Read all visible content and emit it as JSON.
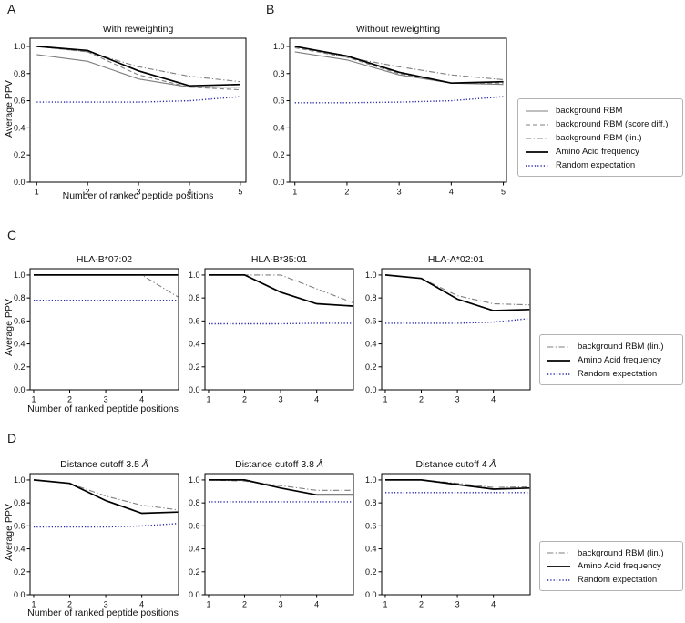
{
  "figure": {
    "panel_labels": {
      "a": "A",
      "b": "B",
      "c": "C",
      "d": "D"
    },
    "ylabel": "Average PPV",
    "xlabel": "Number of ranked peptide positions"
  },
  "line_styles": {
    "gray_solid": {
      "color": "#7f7f7f",
      "dash": "solid",
      "width": 1.1
    },
    "gray_dashed": {
      "color": "#7f7f7f",
      "dash": "dashed",
      "width": 1.1
    },
    "gray_dashdot": {
      "color": "#7f7f7f",
      "dash": "dashdot",
      "width": 1.1
    },
    "black_solid": {
      "color": "#000000",
      "dash": "solid",
      "width": 1.7
    },
    "blue_dotted": {
      "color": "#2222aa",
      "dash": "dotted",
      "width": 1.4
    }
  },
  "legends": {
    "ab": {
      "entries": [
        {
          "label": "background RBM",
          "style": "gray_solid"
        },
        {
          "label": "background RBM (score diff.)",
          "style": "gray_dashed"
        },
        {
          "label": "background RBM (lin.)",
          "style": "gray_dashdot"
        },
        {
          "label": "Amino Acid frequency",
          "style": "black_solid"
        },
        {
          "label": "Random expectation",
          "style": "blue_dotted"
        }
      ]
    },
    "c": {
      "entries": [
        {
          "label": "background RBM (lin.)",
          "style": "gray_dashdot"
        },
        {
          "label": "Amino Acid frequency",
          "style": "black_solid"
        },
        {
          "label": "Random expectation",
          "style": "blue_dotted"
        }
      ]
    },
    "d": {
      "entries": [
        {
          "label": "background RBM (lin.)",
          "style": "gray_dashdot"
        },
        {
          "label": "Amino Acid frequency",
          "style": "black_solid"
        },
        {
          "label": "Random expectation",
          "style": "blue_dotted"
        }
      ]
    }
  },
  "chart_data": [
    {
      "type": "line",
      "title": "With reweighting",
      "title_italic": "",
      "x": [
        1,
        2,
        3,
        4,
        5
      ],
      "xticks": [
        "1",
        "2",
        "3",
        "4",
        "5"
      ],
      "yticks": [
        "0.0",
        "0.2",
        "0.4",
        "0.6",
        "0.8",
        "1.0"
      ],
      "xlim": [
        0.87,
        5.11
      ],
      "ylim": [
        0,
        1.06
      ],
      "series": [
        {
          "name": "background RBM",
          "style": "gray_solid",
          "values": [
            0.94,
            0.89,
            0.76,
            0.7,
            0.7
          ]
        },
        {
          "name": "background RBM (score diff.)",
          "style": "gray_dashed",
          "values": [
            1.0,
            0.96,
            0.79,
            0.7,
            0.68
          ]
        },
        {
          "name": "background RBM (lin.)",
          "style": "gray_dashdot",
          "values": [
            1.0,
            0.96,
            0.85,
            0.78,
            0.74
          ]
        },
        {
          "name": "Amino Acid frequency",
          "style": "black_solid",
          "values": [
            1.0,
            0.97,
            0.82,
            0.71,
            0.72
          ]
        },
        {
          "name": "Random expectation",
          "style": "blue_dotted",
          "values": [
            0.59,
            0.59,
            0.59,
            0.6,
            0.63
          ]
        }
      ]
    },
    {
      "type": "line",
      "title": "Without reweighting",
      "title_italic": "",
      "x": [
        1,
        2,
        3,
        4,
        5
      ],
      "xticks": [
        "1",
        "2",
        "3",
        "4",
        "5"
      ],
      "yticks": [
        "0.0",
        "0.2",
        "0.4",
        "0.6",
        "0.8",
        "1.0"
      ],
      "xlim": [
        0.9,
        5.06
      ],
      "ylim": [
        0,
        1.06
      ],
      "series": [
        {
          "name": "background RBM",
          "style": "gray_solid",
          "values": [
            0.96,
            0.9,
            0.79,
            0.73,
            0.72
          ]
        },
        {
          "name": "background RBM (score diff.)",
          "style": "gray_dashed",
          "values": [
            0.99,
            0.92,
            0.8,
            0.73,
            0.73
          ]
        },
        {
          "name": "background RBM (lin.)",
          "style": "gray_dashdot",
          "values": [
            1.0,
            0.92,
            0.85,
            0.79,
            0.755
          ]
        },
        {
          "name": "Amino Acid frequency",
          "style": "black_solid",
          "values": [
            1.0,
            0.93,
            0.81,
            0.73,
            0.74
          ]
        },
        {
          "name": "Random expectation",
          "style": "blue_dotted",
          "values": [
            0.585,
            0.585,
            0.59,
            0.6,
            0.63
          ]
        }
      ]
    },
    {
      "type": "line",
      "title": "HLA-B*07:02",
      "title_italic": "",
      "x": [
        1,
        2,
        3,
        4,
        5
      ],
      "xticks": [
        "1",
        "2",
        "3",
        "4"
      ],
      "yticks": [
        "0.0",
        "0.2",
        "0.4",
        "0.6",
        "0.8",
        "1.0"
      ],
      "xlim": [
        0.9,
        5.02
      ],
      "ylim": [
        0,
        1.055
      ],
      "series": [
        {
          "name": "background RBM (lin.)",
          "style": "gray_dashdot",
          "values": [
            1.0,
            1.0,
            1.0,
            1.0,
            0.81
          ]
        },
        {
          "name": "Amino Acid frequency",
          "style": "black_solid",
          "values": [
            1.0,
            1.0,
            1.0,
            1.0,
            1.0
          ]
        },
        {
          "name": "Random expectation",
          "style": "blue_dotted",
          "values": [
            0.78,
            0.78,
            0.78,
            0.78,
            0.78
          ]
        }
      ]
    },
    {
      "type": "line",
      "title": "HLA-B*35:01",
      "title_italic": "",
      "x": [
        1,
        2,
        3,
        4,
        5
      ],
      "xticks": [
        "1",
        "2",
        "3",
        "4"
      ],
      "yticks": [
        "0.0",
        "0.2",
        "0.4",
        "0.6",
        "0.8",
        "1.0"
      ],
      "xlim": [
        0.9,
        5.02
      ],
      "ylim": [
        0,
        1.055
      ],
      "series": [
        {
          "name": "background RBM (lin.)",
          "style": "gray_dashdot",
          "values": [
            1.0,
            1.0,
            1.0,
            0.88,
            0.76
          ]
        },
        {
          "name": "Amino Acid frequency",
          "style": "black_solid",
          "values": [
            1.0,
            1.0,
            0.85,
            0.75,
            0.73
          ]
        },
        {
          "name": "Random expectation",
          "style": "blue_dotted",
          "values": [
            0.575,
            0.575,
            0.575,
            0.58,
            0.58
          ]
        }
      ]
    },
    {
      "type": "line",
      "title": "HLA-A*02:01",
      "title_italic": "",
      "x": [
        1,
        2,
        3,
        4,
        5
      ],
      "xticks": [
        "1",
        "2",
        "3",
        "4"
      ],
      "yticks": [
        "0.0",
        "0.2",
        "0.4",
        "0.6",
        "0.8",
        "1.0"
      ],
      "xlim": [
        0.9,
        5.02
      ],
      "ylim": [
        0,
        1.055
      ],
      "series": [
        {
          "name": "background RBM (lin.)",
          "style": "gray_dashdot",
          "values": [
            1.0,
            0.97,
            0.82,
            0.75,
            0.74
          ]
        },
        {
          "name": "Amino Acid frequency",
          "style": "black_solid",
          "values": [
            1.0,
            0.97,
            0.79,
            0.69,
            0.7
          ]
        },
        {
          "name": "Random expectation",
          "style": "blue_dotted",
          "values": [
            0.58,
            0.58,
            0.58,
            0.59,
            0.62
          ]
        }
      ]
    },
    {
      "type": "line",
      "title": "Distance cutoff 3.5 ",
      "title_italic": "Å",
      "x": [
        1,
        2,
        3,
        4,
        5
      ],
      "xticks": [
        "1",
        "2",
        "3",
        "4"
      ],
      "yticks": [
        "0.0",
        "0.2",
        "0.4",
        "0.6",
        "0.8",
        "1.0"
      ],
      "xlim": [
        0.9,
        5.02
      ],
      "ylim": [
        0,
        1.055
      ],
      "series": [
        {
          "name": "background RBM (lin.)",
          "style": "gray_dashdot",
          "values": [
            1.0,
            0.97,
            0.86,
            0.78,
            0.74
          ]
        },
        {
          "name": "Amino Acid frequency",
          "style": "black_solid",
          "values": [
            1.0,
            0.97,
            0.82,
            0.71,
            0.72
          ]
        },
        {
          "name": "Random expectation",
          "style": "blue_dotted",
          "values": [
            0.59,
            0.59,
            0.59,
            0.6,
            0.62
          ]
        }
      ]
    },
    {
      "type": "line",
      "title": "Distance cutoff 3.8 ",
      "title_italic": "Å",
      "x": [
        1,
        2,
        3,
        4,
        5
      ],
      "xticks": [
        "1",
        "2",
        "3",
        "4"
      ],
      "yticks": [
        "0.0",
        "0.2",
        "0.4",
        "0.6",
        "0.8",
        "1.0"
      ],
      "xlim": [
        0.9,
        5.02
      ],
      "ylim": [
        0,
        1.055
      ],
      "series": [
        {
          "name": "background RBM (lin.)",
          "style": "gray_dashdot",
          "values": [
            1.0,
            0.99,
            0.95,
            0.91,
            0.91
          ]
        },
        {
          "name": "Amino Acid frequency",
          "style": "black_solid",
          "values": [
            1.0,
            1.0,
            0.93,
            0.87,
            0.87
          ]
        },
        {
          "name": "Random expectation",
          "style": "blue_dotted",
          "values": [
            0.81,
            0.81,
            0.81,
            0.81,
            0.81
          ]
        }
      ]
    },
    {
      "type": "line",
      "title": "Distance cutoff 4 ",
      "title_italic": "Å",
      "x": [
        1,
        2,
        3,
        4,
        5
      ],
      "xticks": [
        "1",
        "2",
        "3",
        "4"
      ],
      "yticks": [
        "0.0",
        "0.2",
        "0.4",
        "0.6",
        "0.8",
        "1.0"
      ],
      "xlim": [
        0.9,
        5.02
      ],
      "ylim": [
        0,
        1.055
      ],
      "series": [
        {
          "name": "background RBM (lin.)",
          "style": "gray_dashdot",
          "values": [
            1.0,
            1.0,
            0.97,
            0.935,
            0.94
          ]
        },
        {
          "name": "Amino Acid frequency",
          "style": "black_solid",
          "values": [
            1.0,
            1.0,
            0.96,
            0.92,
            0.93
          ]
        },
        {
          "name": "Random expectation",
          "style": "blue_dotted",
          "values": [
            0.89,
            0.89,
            0.89,
            0.89,
            0.89
          ]
        }
      ]
    }
  ]
}
